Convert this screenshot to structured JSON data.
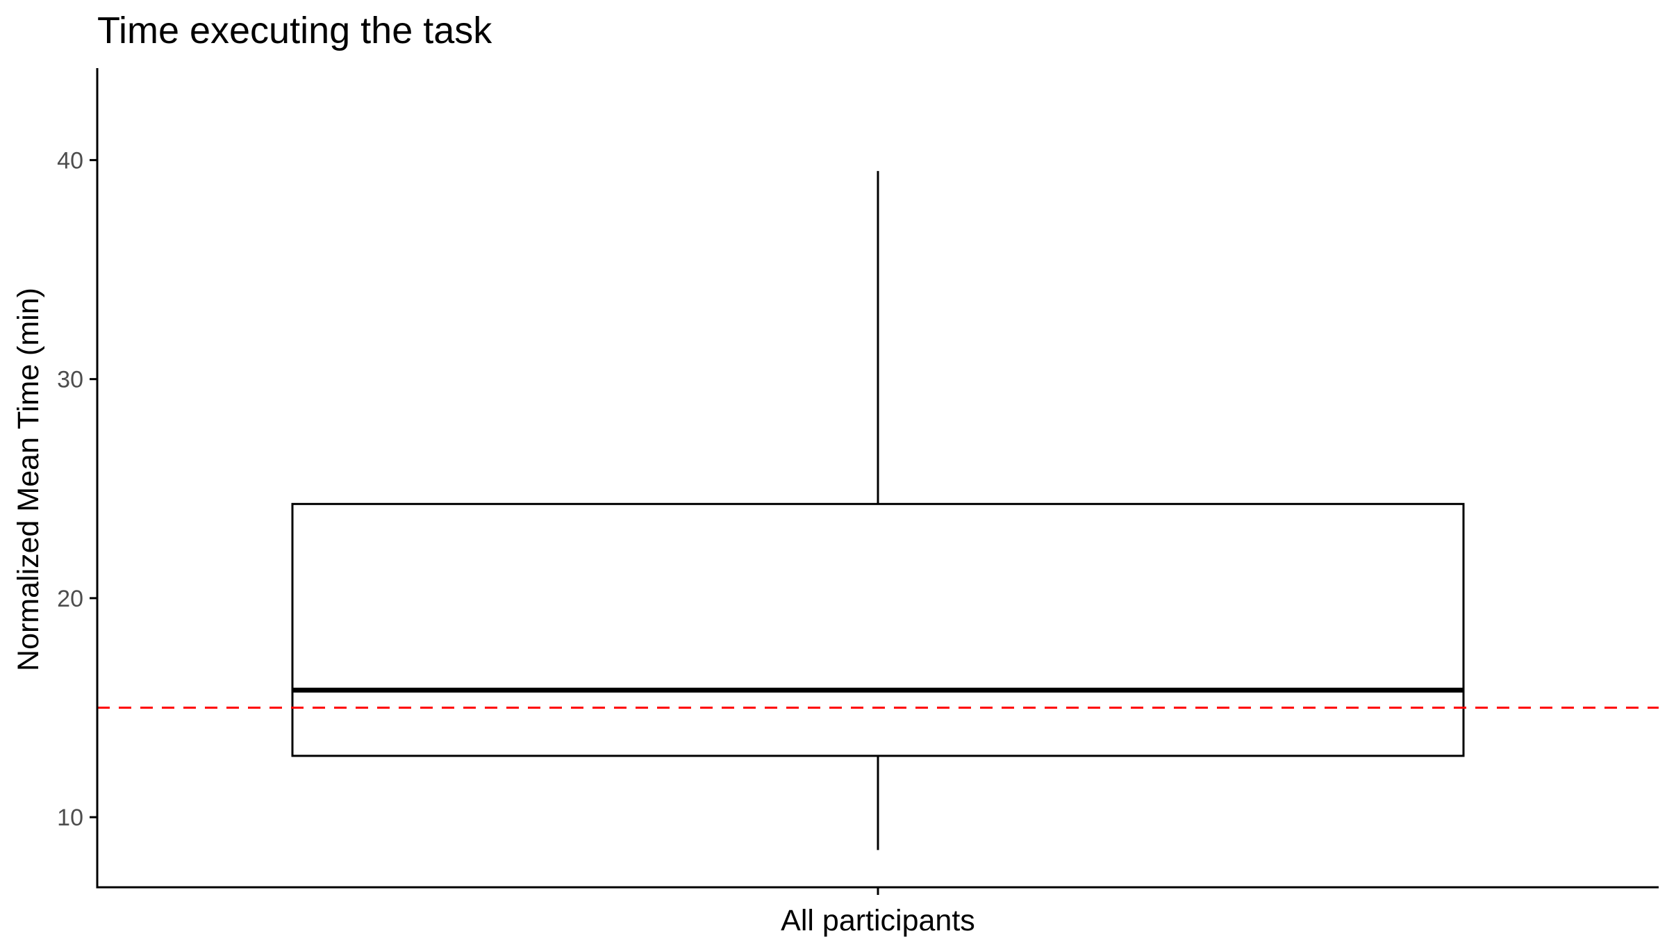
{
  "chart_data": {
    "type": "box",
    "title": "Time executing the task",
    "xlabel": "",
    "ylabel": "Normalized Mean Time (min)",
    "categories": [
      "All participants"
    ],
    "boxes": [
      {
        "category": "All participants",
        "whisker_low": 8.5,
        "q1": 12.8,
        "median": 15.8,
        "q3": 24.3,
        "whisker_high": 39.5
      }
    ],
    "reference_line": {
      "y": 15,
      "color": "#ff0000",
      "style": "dashed"
    },
    "ylim": [
      6.8,
      44.2
    ],
    "yticks": [
      10,
      20,
      30,
      40
    ],
    "grid": false,
    "colors": {
      "box_stroke": "#000000",
      "box_fill": "#ffffff",
      "axis": "#000000",
      "tick_label": "#4d4d4d"
    }
  }
}
